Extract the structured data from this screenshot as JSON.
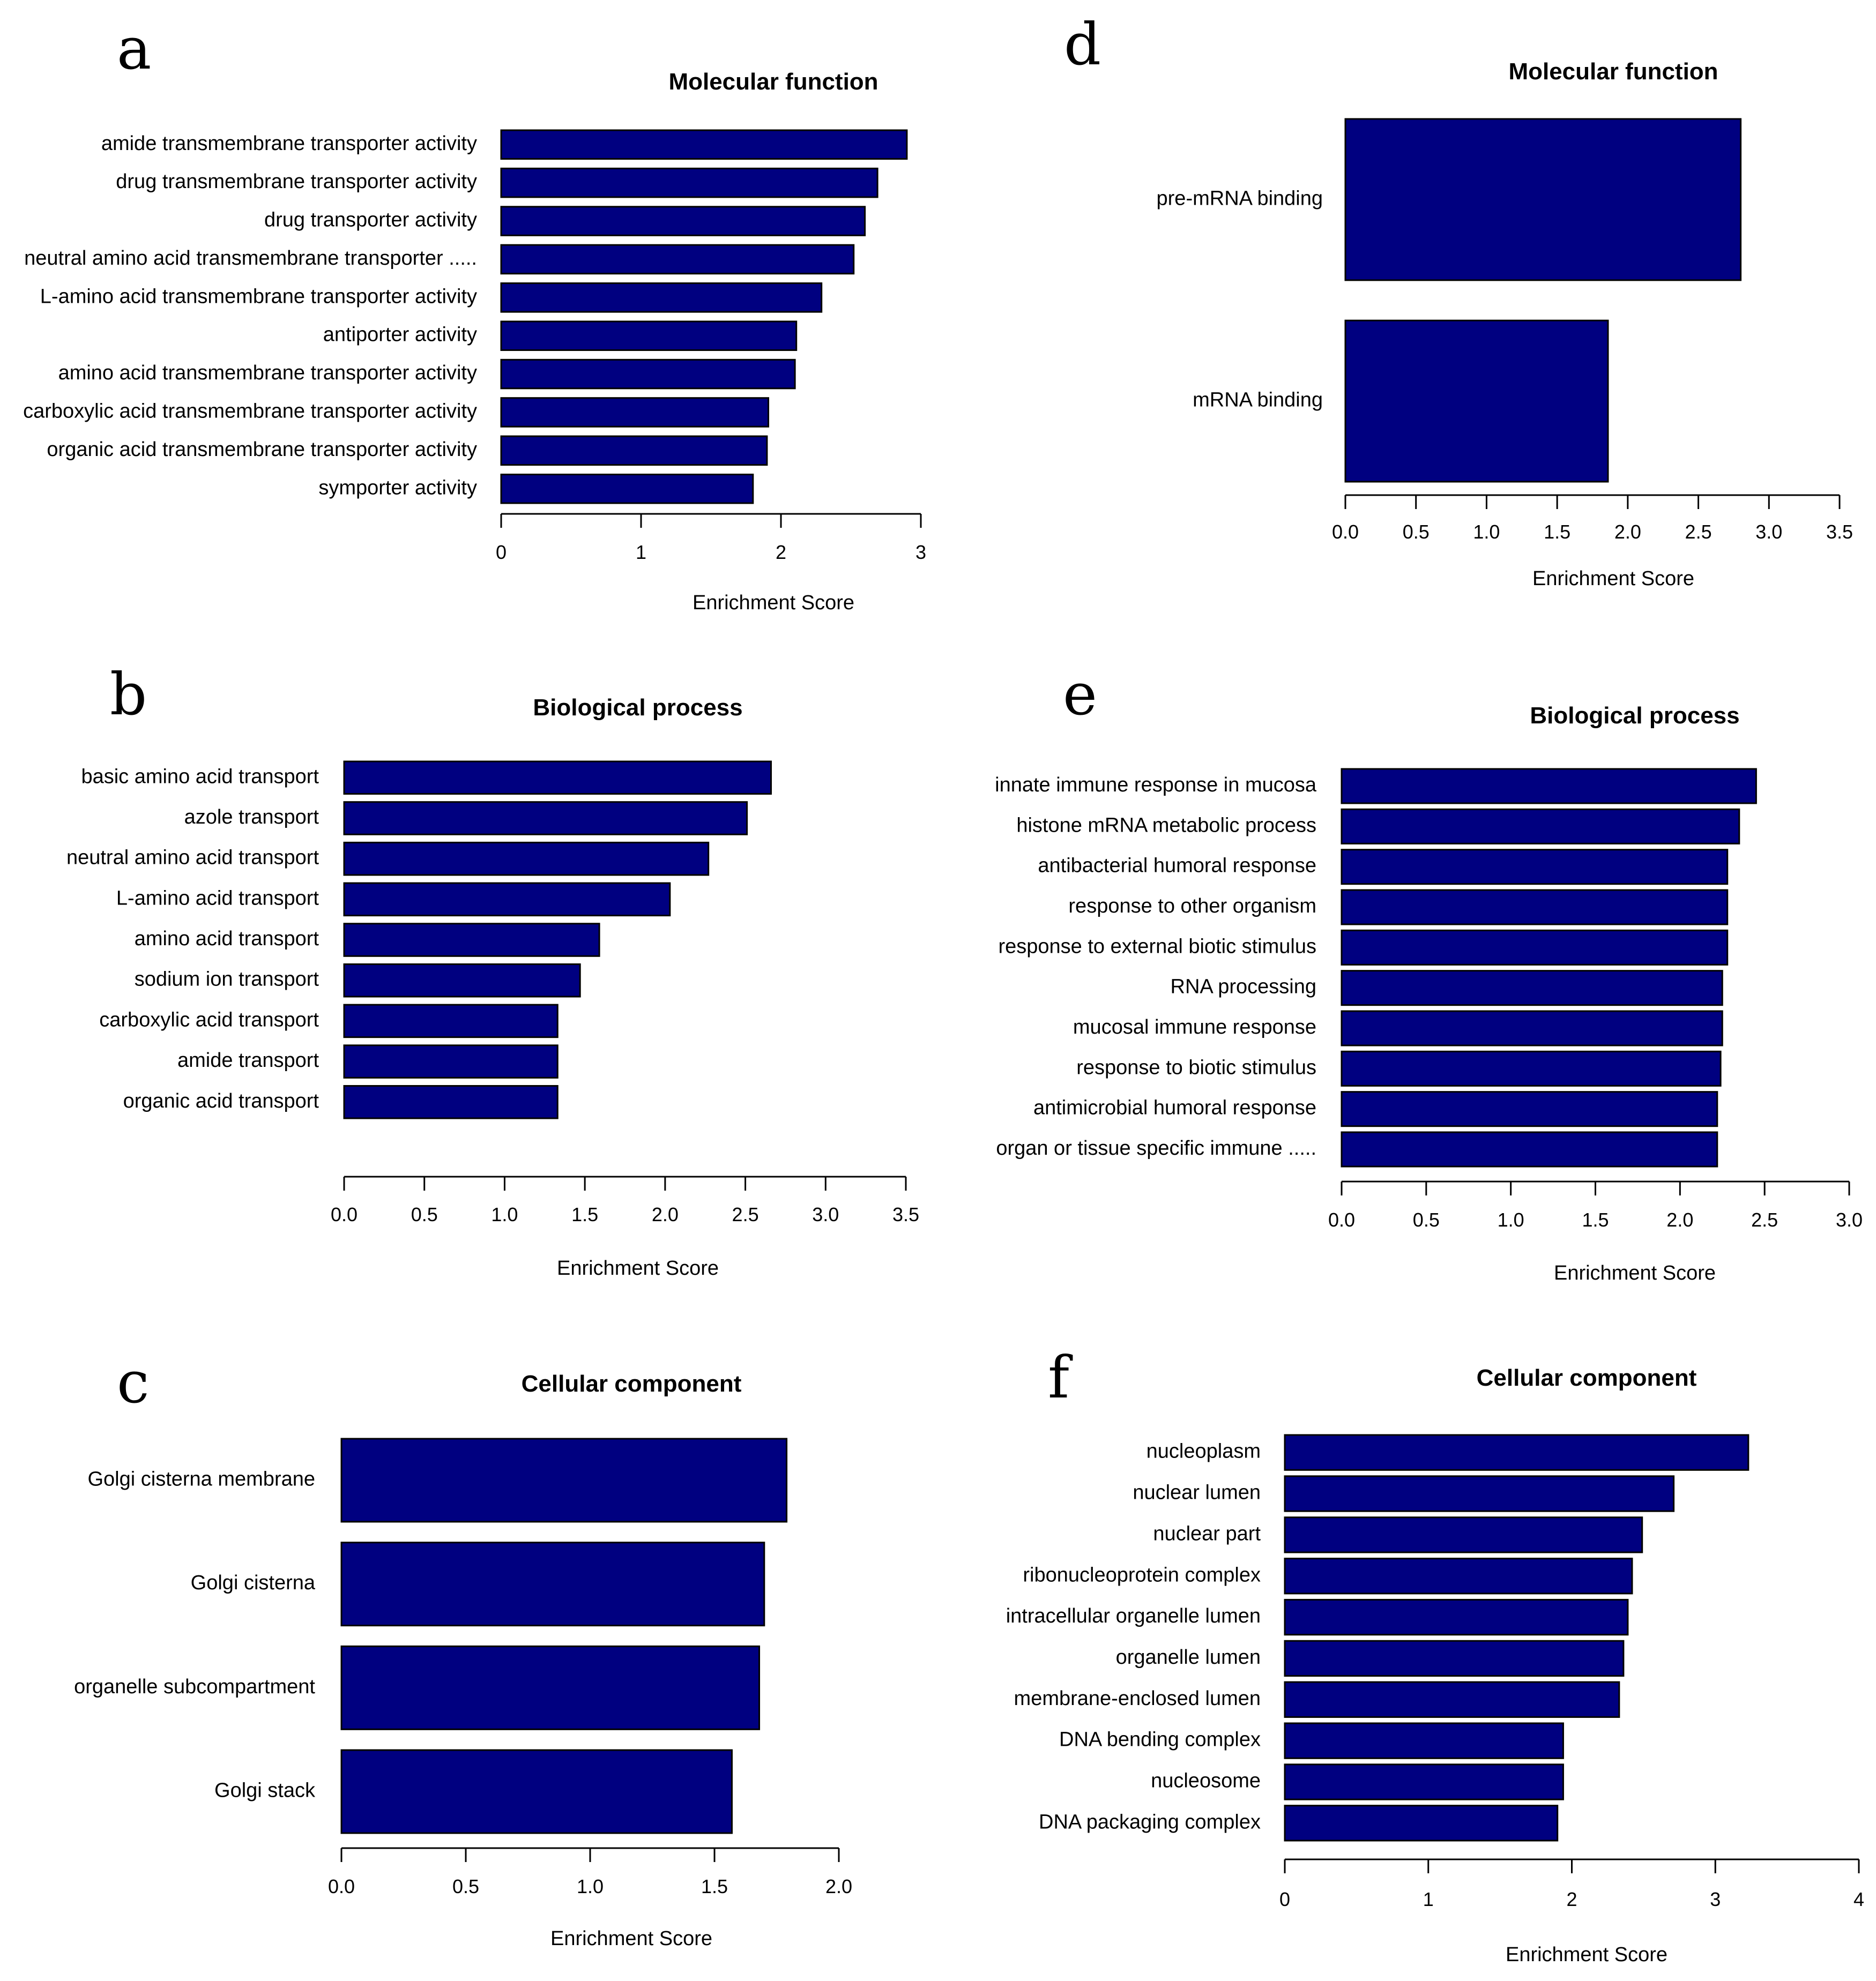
{
  "figure": {
    "bar_color": "#000080",
    "bar_stroke": "#000000"
  },
  "chart_data": [
    {
      "panel": "a",
      "type": "bar",
      "orientation": "horizontal",
      "title": "Molecular function",
      "xlabel": "Enrichment Score",
      "ylabel": "",
      "xlim": [
        0,
        3
      ],
      "xticks": [
        "0",
        "1",
        "2",
        "3"
      ],
      "categories": [
        "amide transmembrane transporter activity",
        "drug transmembrane transporter activity",
        "drug transporter activity",
        "neutral amino acid transmembrane transporter .....",
        "L-amino acid transmembrane transporter activity",
        "antiporter activity",
        "amino acid transmembrane transporter activity",
        "carboxylic acid transmembrane transporter activity",
        "organic acid transmembrane transporter activity",
        "symporter activity"
      ],
      "values": [
        2.9,
        2.69,
        2.6,
        2.52,
        2.29,
        2.11,
        2.1,
        1.91,
        1.9,
        1.8
      ]
    },
    {
      "panel": "b",
      "type": "bar",
      "orientation": "horizontal",
      "title": "Biological process",
      "xlabel": "Enrichment Score",
      "ylabel": "",
      "xlim": [
        0,
        3.5
      ],
      "xticks": [
        "0.0",
        "0.5",
        "1.0",
        "1.5",
        "2.0",
        "2.5",
        "3.0",
        "3.5"
      ],
      "categories": [
        "basic amino acid transport",
        "azole transport",
        "neutral amino acid transport",
        "L-amino acid transport",
        "amino acid transport",
        "sodium ion transport",
        "carboxylic acid transport",
        "amide transport",
        "organic acid transport"
      ],
      "values": [
        2.66,
        2.51,
        2.27,
        2.03,
        1.59,
        1.47,
        1.33,
        1.33,
        1.33
      ]
    },
    {
      "panel": "c",
      "type": "bar",
      "orientation": "horizontal",
      "title": "Cellular component",
      "xlabel": "Enrichment Score",
      "ylabel": "",
      "xlim": [
        0,
        2.0
      ],
      "xticks": [
        "0.0",
        "0.5",
        "1.0",
        "1.5",
        "2.0"
      ],
      "categories": [
        "Golgi cisterna membrane",
        "Golgi cisterna",
        "organelle subcompartment",
        "Golgi stack"
      ],
      "values": [
        1.79,
        1.7,
        1.68,
        1.57
      ]
    },
    {
      "panel": "d",
      "type": "bar",
      "orientation": "horizontal",
      "title": "Molecular function",
      "xlabel": "Enrichment Score",
      "ylabel": "",
      "xlim": [
        0,
        3.5
      ],
      "xticks": [
        "0.0",
        "0.5",
        "1.0",
        "1.5",
        "2.0",
        "2.5",
        "3.0",
        "3.5"
      ],
      "categories": [
        "pre-mRNA binding",
        "mRNA binding"
      ],
      "values": [
        2.8,
        1.86
      ]
    },
    {
      "panel": "e",
      "type": "bar",
      "orientation": "horizontal",
      "title": "Biological process",
      "xlabel": "Enrichment Score",
      "ylabel": "",
      "xlim": [
        0,
        3.0
      ],
      "xticks": [
        "0.0",
        "0.5",
        "1.0",
        "1.5",
        "2.0",
        "2.5",
        "3.0"
      ],
      "categories": [
        "innate immune response in mucosa",
        "histone mRNA metabolic process",
        "antibacterial humoral response",
        "response to other organism",
        "response to external biotic stimulus",
        "RNA processing",
        "mucosal immune response",
        "response to biotic stimulus",
        "antimicrobial humoral response",
        "organ or tissue specific immune ....."
      ],
      "values": [
        2.45,
        2.35,
        2.28,
        2.28,
        2.28,
        2.25,
        2.25,
        2.24,
        2.22,
        2.22
      ]
    },
    {
      "panel": "f",
      "type": "bar",
      "orientation": "horizontal",
      "title": "Cellular component",
      "xlabel": "Enrichment Score",
      "ylabel": "",
      "xlim": [
        0,
        4
      ],
      "xticks": [
        "0",
        "1",
        "2",
        "3",
        "4"
      ],
      "categories": [
        "nucleoplasm",
        "nuclear lumen",
        "nuclear part",
        "ribonucleoprotein complex",
        "intracellular organelle lumen",
        "organelle lumen",
        "membrane-enclosed lumen",
        "DNA bending complex",
        "nucleosome",
        "DNA packaging complex"
      ],
      "values": [
        3.23,
        2.71,
        2.49,
        2.42,
        2.39,
        2.36,
        2.33,
        1.94,
        1.94,
        1.9
      ]
    }
  ]
}
